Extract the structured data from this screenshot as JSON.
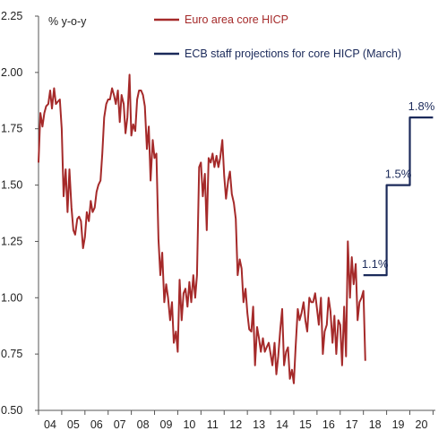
{
  "chart_data": {
    "type": "line",
    "ylabel": "% y-o-y",
    "ylim": [
      0.5,
      2.25
    ],
    "yticks": [
      "2.25",
      "2.00",
      "1.75",
      "1.50",
      "1.25",
      "1.00",
      "0.75",
      "0.50"
    ],
    "xlim": [
      2004.0,
      2021.1
    ],
    "xticks": [
      {
        "label": "04",
        "year": 2004
      },
      {
        "label": "05",
        "year": 2005
      },
      {
        "label": "06",
        "year": 2006
      },
      {
        "label": "07",
        "year": 2007
      },
      {
        "label": "08",
        "year": 2008
      },
      {
        "label": "09",
        "year": 2009
      },
      {
        "label": "10",
        "year": 2010
      },
      {
        "label": "11",
        "year": 2011
      },
      {
        "label": "12",
        "year": 2012
      },
      {
        "label": "13",
        "year": 2013
      },
      {
        "label": "14",
        "year": 2014
      },
      {
        "label": "15",
        "year": 2015
      },
      {
        "label": "16",
        "year": 2016
      },
      {
        "label": "17",
        "year": 2017
      },
      {
        "label": "18",
        "year": 2018
      },
      {
        "label": "19",
        "year": 2019
      },
      {
        "label": "20",
        "year": 2020
      }
    ],
    "grid": false,
    "legend_position": "top-right",
    "series": [
      {
        "name": "Euro area core HICP",
        "color": "#a52a2a",
        "x": [
          2004.0,
          2004.08,
          2004.17,
          2004.25,
          2004.33,
          2004.42,
          2004.5,
          2004.58,
          2004.67,
          2004.75,
          2004.83,
          2004.92,
          2005.0,
          2005.08,
          2005.17,
          2005.25,
          2005.33,
          2005.42,
          2005.5,
          2005.58,
          2005.67,
          2005.75,
          2005.83,
          2005.92,
          2006.0,
          2006.08,
          2006.17,
          2006.25,
          2006.33,
          2006.42,
          2006.5,
          2006.58,
          2006.67,
          2006.75,
          2006.83,
          2006.92,
          2007.0,
          2007.08,
          2007.17,
          2007.25,
          2007.33,
          2007.42,
          2007.5,
          2007.58,
          2007.67,
          2007.75,
          2007.83,
          2007.92,
          2008.0,
          2008.08,
          2008.17,
          2008.25,
          2008.33,
          2008.42,
          2008.5,
          2008.58,
          2008.67,
          2008.75,
          2008.83,
          2008.92,
          2009.0,
          2009.08,
          2009.17,
          2009.25,
          2009.33,
          2009.42,
          2009.5,
          2009.58,
          2009.67,
          2009.75,
          2009.83,
          2009.92,
          2010.0,
          2010.08,
          2010.17,
          2010.25,
          2010.33,
          2010.42,
          2010.5,
          2010.58,
          2010.67,
          2010.75,
          2010.83,
          2010.92,
          2011.0,
          2011.08,
          2011.17,
          2011.25,
          2011.33,
          2011.42,
          2011.5,
          2011.58,
          2011.67,
          2011.75,
          2011.83,
          2011.92,
          2012.0,
          2012.08,
          2012.17,
          2012.25,
          2012.33,
          2012.42,
          2012.5,
          2012.58,
          2012.67,
          2012.75,
          2012.83,
          2012.92,
          2013.0,
          2013.08,
          2013.17,
          2013.25,
          2013.33,
          2013.42,
          2013.5,
          2013.58,
          2013.67,
          2013.75,
          2013.83,
          2013.92,
          2014.0,
          2014.08,
          2014.17,
          2014.25,
          2014.33,
          2014.42,
          2014.5,
          2014.58,
          2014.67,
          2014.75,
          2014.83,
          2014.92,
          2015.0,
          2015.08,
          2015.17,
          2015.25,
          2015.33,
          2015.42,
          2015.5,
          2015.58,
          2015.67,
          2015.75,
          2015.83,
          2015.92,
          2016.0,
          2016.08,
          2016.17,
          2016.25,
          2016.33,
          2016.42,
          2016.5,
          2016.58,
          2016.67,
          2016.75,
          2016.83,
          2016.92,
          2017.0,
          2017.08,
          2017.17,
          2017.25,
          2017.33,
          2017.42,
          2017.5,
          2017.58,
          2017.67,
          2017.75,
          2017.83,
          2017.92,
          2018.0,
          2018.08
        ],
        "y": [
          1.6,
          1.82,
          1.76,
          1.82,
          1.85,
          1.86,
          1.92,
          1.84,
          1.93,
          1.86,
          1.87,
          1.88,
          1.75,
          1.45,
          1.57,
          1.38,
          1.57,
          1.4,
          1.3,
          1.28,
          1.35,
          1.36,
          1.34,
          1.22,
          1.27,
          1.38,
          1.34,
          1.43,
          1.38,
          1.4,
          1.47,
          1.5,
          1.52,
          1.64,
          1.8,
          1.86,
          1.88,
          1.88,
          1.93,
          1.9,
          1.86,
          1.92,
          1.78,
          1.9,
          1.86,
          1.73,
          1.8,
          1.99,
          1.72,
          1.77,
          1.74,
          1.88,
          1.92,
          1.92,
          1.9,
          1.85,
          1.66,
          1.76,
          1.52,
          1.7,
          1.62,
          1.64,
          1.26,
          1.1,
          1.2,
          0.98,
          1.06,
          1.0,
          0.9,
          0.98,
          0.8,
          0.85,
          0.76,
          1.08,
          0.9,
          1.02,
          1.04,
          0.96,
          1.07,
          0.98,
          1.1,
          1.0,
          1.1,
          1.58,
          1.6,
          1.45,
          1.55,
          1.3,
          1.62,
          1.6,
          1.64,
          1.58,
          1.63,
          1.58,
          1.62,
          1.7,
          1.54,
          1.44,
          1.52,
          1.56,
          1.46,
          1.42,
          1.35,
          1.1,
          1.17,
          1.13,
          0.98,
          1.04,
          0.93,
          0.86,
          0.85,
          0.96,
          0.7,
          0.87,
          0.82,
          0.76,
          0.82,
          0.76,
          0.78,
          0.8,
          0.75,
          0.7,
          0.8,
          0.66,
          0.74,
          0.86,
          0.95,
          0.7,
          0.76,
          0.78,
          0.64,
          0.68,
          0.62,
          0.78,
          0.95,
          0.9,
          0.93,
          0.98,
          0.9,
          0.85,
          1.0,
          0.98,
          0.98,
          1.02,
          0.95,
          0.88,
          1.0,
          0.75,
          0.85,
          0.88,
          1.0,
          0.94,
          0.8,
          0.92,
          0.75,
          0.9,
          0.88,
          0.7,
          0.96,
          0.74,
          1.25,
          1.0,
          1.18,
          1.06,
          1.15,
          0.9,
          0.98,
          1.0,
          1.03,
          0.72
        ]
      },
      {
        "name": "ECB staff projections for core HICP (March)",
        "color": "#1b2a5a",
        "step": true,
        "x": [
          2018.0,
          2019.0,
          2020.0,
          2021.0
        ],
        "y": [
          1.1,
          1.5,
          1.8,
          1.8
        ]
      }
    ],
    "data_labels": [
      {
        "text": "1.1%",
        "x": 2018.5,
        "y": 1.1
      },
      {
        "text": "1.5%",
        "x": 2019.5,
        "y": 1.5
      },
      {
        "text": "1.8%",
        "x": 2020.5,
        "y": 1.8
      }
    ]
  }
}
